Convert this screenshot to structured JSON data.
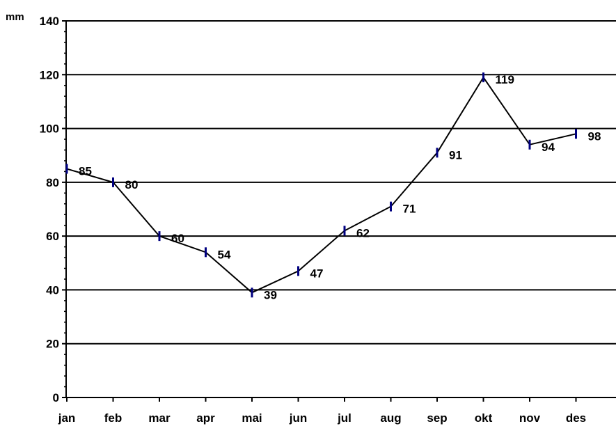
{
  "chart_data": {
    "type": "line",
    "title": "",
    "xlabel": "",
    "ylabel": "mm",
    "categories": [
      "jan",
      "feb",
      "mar",
      "apr",
      "mai",
      "jun",
      "jul",
      "aug",
      "sep",
      "okt",
      "nov",
      "des"
    ],
    "series": [
      {
        "values": [
          85,
          80,
          60,
          54,
          39,
          47,
          62,
          71,
          91,
          119,
          94,
          98
        ]
      }
    ],
    "ylim": [
      0,
      140
    ],
    "yticks": [
      0,
      20,
      40,
      60,
      80,
      100,
      120,
      140
    ],
    "grid": true,
    "legend": "none",
    "data_labels": true,
    "colors": {
      "line": "#000000",
      "marker": "#000080",
      "grid": "#000000"
    }
  }
}
